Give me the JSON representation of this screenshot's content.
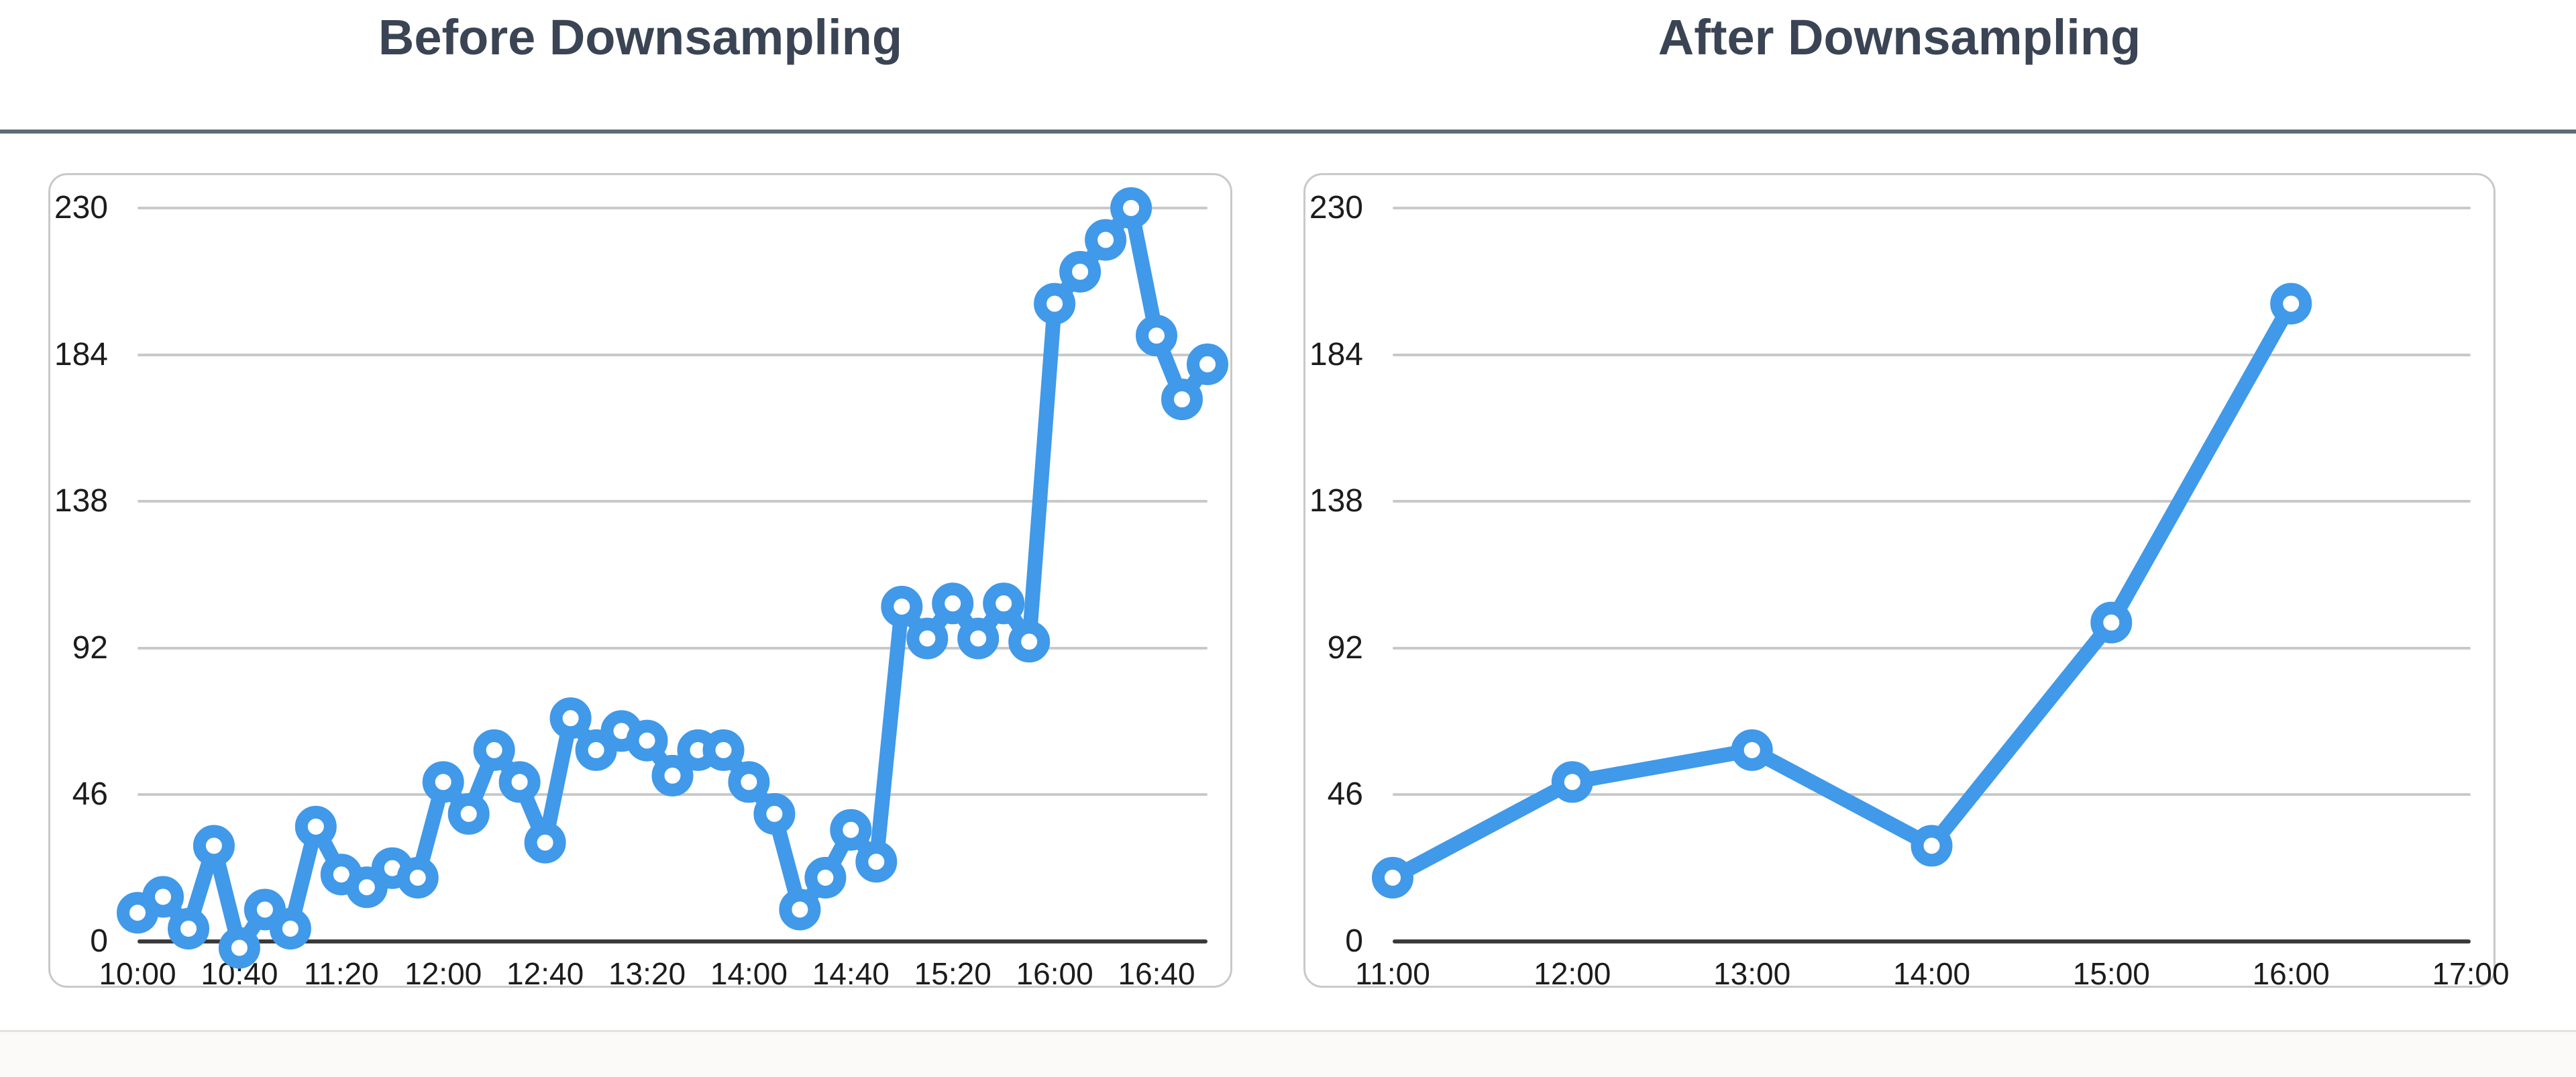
{
  "page": {
    "background": "#ffffff",
    "title_color": "#3a4454",
    "top_divider_color": "#5d6b77",
    "bottom_divider_color": "#e2e1df",
    "panel_border_color": "#c9c9c9",
    "grid_color": "#c9c9c9",
    "axis_color": "#3a3a3a",
    "tick_text_color": "#1c1c1c",
    "accent_blue": "#4099e9"
  },
  "chart_data": [
    {
      "type": "line",
      "title": "Before Downsampling",
      "x": [
        "10:00",
        "10:10",
        "10:20",
        "10:30",
        "10:40",
        "10:50",
        "11:00",
        "11:10",
        "11:20",
        "11:30",
        "11:40",
        "11:50",
        "12:00",
        "12:10",
        "12:20",
        "12:30",
        "12:40",
        "12:50",
        "13:00",
        "13:10",
        "13:20",
        "13:30",
        "13:40",
        "13:50",
        "14:00",
        "14:10",
        "14:20",
        "14:30",
        "14:40",
        "14:50",
        "15:00",
        "15:10",
        "15:20",
        "15:30",
        "15:40",
        "15:50",
        "16:00",
        "16:10",
        "16:20",
        "16:30",
        "16:40",
        "16:50",
        "17:00"
      ],
      "values": [
        9,
        14,
        4,
        30,
        -2,
        10,
        4,
        36,
        21,
        17,
        23,
        20,
        50,
        40,
        60,
        50,
        31,
        70,
        60,
        66,
        63,
        52,
        60,
        60,
        50,
        40,
        10,
        20,
        35,
        25,
        105,
        95,
        106,
        95,
        106,
        94,
        200,
        210,
        220,
        230,
        190,
        170,
        181
      ],
      "x_tick_labels": [
        "10:00",
        "10:40",
        "11:20",
        "12:00",
        "12:40",
        "13:20",
        "14:00",
        "14:40",
        "15:20",
        "16:00",
        "16:40"
      ],
      "x_range": [
        "10:00",
        "17:00"
      ],
      "y_ticks": [
        230,
        184,
        138,
        92,
        46,
        0
      ],
      "ylim": [
        0,
        230
      ],
      "grid": true,
      "legend_position": "none",
      "line_color": "#4099e9",
      "marker": "open-circle"
    },
    {
      "type": "line",
      "title": "After Downsampling",
      "x": [
        "11:00",
        "12:00",
        "13:00",
        "14:00",
        "15:00",
        "16:00"
      ],
      "values": [
        20,
        50,
        60,
        30,
        100,
        200
      ],
      "x_tick_labels": [
        "11:00",
        "12:00",
        "13:00",
        "14:00",
        "15:00",
        "16:00",
        "17:00"
      ],
      "x_range": [
        "11:00",
        "17:00"
      ],
      "y_ticks": [
        230,
        184,
        138,
        92,
        46,
        0
      ],
      "ylim": [
        0,
        230
      ],
      "grid": true,
      "legend_position": "none",
      "line_color": "#4099e9",
      "marker": "open-circle"
    }
  ]
}
